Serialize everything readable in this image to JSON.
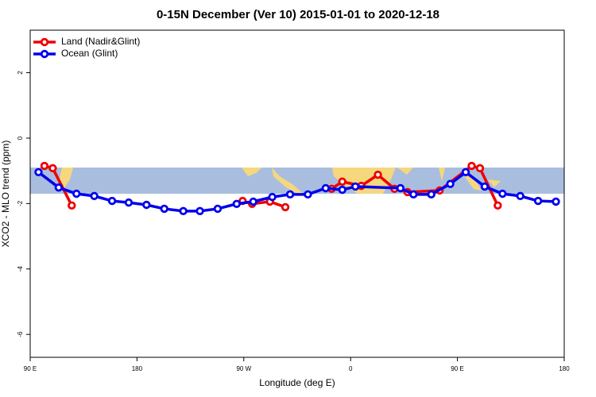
{
  "chart_data": {
    "type": "line",
    "title": "0-15N December (Ver 10)   2015-01-01 to 2020-12-18",
    "xlabel": "Longitude (deg E)",
    "ylabel": "XCO2 - MLO trend (ppm)",
    "xlim": [
      90,
      540
    ],
    "ylim": [
      -6.7,
      3.3
    ],
    "xticks": [
      {
        "value": 90,
        "label": "90 E"
      },
      180,
      {
        "value": 270,
        "label": "90 W"
      },
      {
        "value": 360,
        "label": "0"
      },
      {
        "value": 450,
        "label": "90 E"
      },
      {
        "value": 540,
        "label": "180"
      }
    ],
    "yticks": [
      -6,
      -4,
      -2,
      0,
      2
    ],
    "legend": "top-left",
    "series": [
      {
        "name": "Land (Nadir&Glint)",
        "color": "#ee0000",
        "x": [
          102,
          109,
          125,
          null,
          269,
          277,
          292,
          305,
          null,
          344,
          353,
          369,
          383,
          397,
          408,
          435,
          462,
          469,
          484
        ],
        "values": [
          -0.85,
          -0.92,
          -2.06,
          null,
          -1.92,
          -2.01,
          -1.94,
          -2.11,
          null,
          -1.55,
          -1.33,
          -1.46,
          -1.12,
          -1.55,
          -1.65,
          -1.6,
          -0.85,
          -0.92,
          -2.06
        ]
      },
      {
        "name": "Ocean (Glint)",
        "color": "#0000ee",
        "x": [
          97,
          114,
          129,
          144,
          159,
          173,
          188,
          203,
          219,
          233,
          248,
          264,
          278,
          294,
          309,
          324,
          339,
          353,
          364,
          402,
          413,
          428,
          444,
          457,
          473,
          488,
          503,
          518,
          533
        ],
        "values": [
          -1.04,
          -1.51,
          -1.7,
          -1.77,
          -1.92,
          -1.97,
          -2.04,
          -2.16,
          -2.23,
          -2.23,
          -2.16,
          -2.01,
          -1.94,
          -1.8,
          -1.72,
          -1.72,
          -1.53,
          -1.58,
          -1.48,
          -1.53,
          -1.72,
          -1.72,
          -1.4,
          -1.04,
          -1.48,
          -1.7,
          -1.77,
          -1.92,
          -1.94
        ]
      }
    ]
  }
}
